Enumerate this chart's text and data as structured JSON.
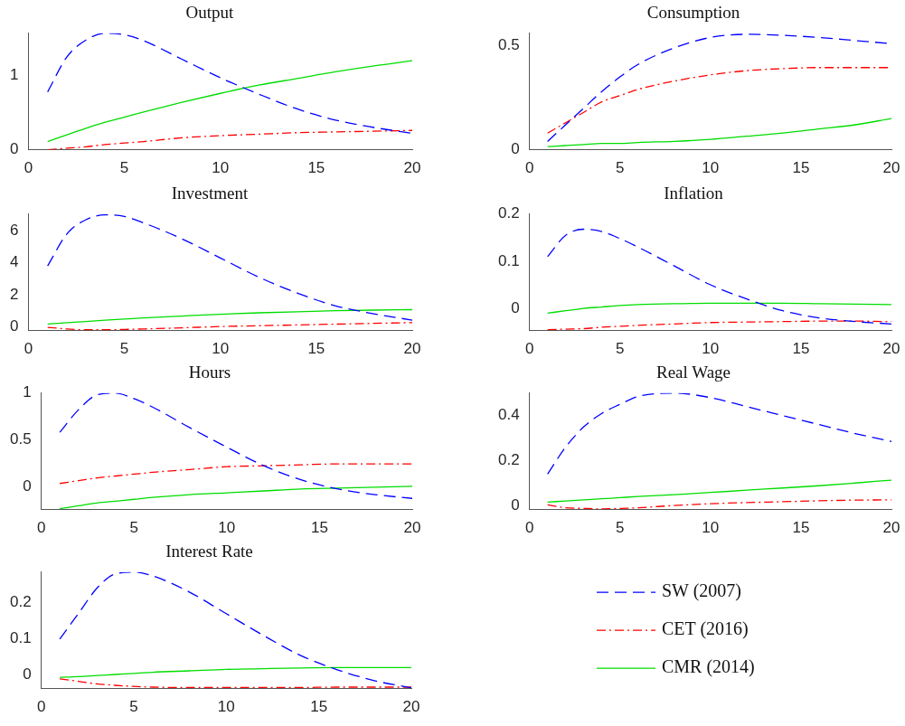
{
  "chart_data": [
    {
      "type": "line",
      "title": "Output",
      "x": [
        1,
        2,
        3,
        4,
        5,
        6,
        8,
        10,
        12,
        14,
        16,
        18,
        20
      ],
      "xlim": [
        0,
        20
      ],
      "xticks": [
        0,
        5,
        10,
        15,
        20
      ],
      "ylim": [
        0,
        1.57
      ],
      "yticks": [
        0,
        1
      ],
      "series": [
        {
          "color": "#0000ff",
          "line_style": "dashed",
          "values": [
            0.78,
            1.25,
            1.48,
            1.57,
            1.55,
            1.47,
            1.22,
            0.97,
            0.75,
            0.55,
            0.4,
            0.3,
            0.22
          ]
        },
        {
          "color": "#ff0000",
          "line_style": "dashdot",
          "values": [
            0.0,
            0.02,
            0.04,
            0.07,
            0.09,
            0.11,
            0.16,
            0.19,
            0.21,
            0.23,
            0.24,
            0.25,
            0.26
          ]
        },
        {
          "color": "#00dd00",
          "line_style": "solid",
          "values": [
            0.11,
            0.2,
            0.29,
            0.37,
            0.44,
            0.51,
            0.64,
            0.76,
            0.87,
            0.96,
            1.05,
            1.13,
            1.2
          ]
        }
      ]
    },
    {
      "type": "line",
      "title": "Consumption",
      "x": [
        1,
        2,
        3,
        4,
        5,
        6,
        8,
        10,
        12,
        14,
        16,
        18,
        20
      ],
      "xlim": [
        0,
        20
      ],
      "xticks": [
        0,
        5,
        10,
        15,
        20
      ],
      "ylim": [
        0,
        0.56
      ],
      "yticks": [
        0,
        0.5
      ],
      "series": [
        {
          "color": "#0000ff",
          "line_style": "dashed",
          "values": [
            0.04,
            0.12,
            0.2,
            0.28,
            0.35,
            0.41,
            0.49,
            0.54,
            0.555,
            0.55,
            0.54,
            0.525,
            0.51
          ]
        },
        {
          "color": "#ff0000",
          "line_style": "dashdot",
          "values": [
            0.08,
            0.13,
            0.18,
            0.23,
            0.26,
            0.29,
            0.33,
            0.36,
            0.38,
            0.39,
            0.395,
            0.395,
            0.395
          ]
        },
        {
          "color": "#00dd00",
          "line_style": "solid",
          "values": [
            0.015,
            0.02,
            0.025,
            0.03,
            0.03,
            0.035,
            0.04,
            0.05,
            0.065,
            0.08,
            0.1,
            0.12,
            0.15
          ]
        }
      ]
    },
    {
      "type": "line",
      "title": "Investment",
      "x": [
        1,
        2,
        3,
        4,
        5,
        6,
        8,
        10,
        12,
        14,
        16,
        18,
        20
      ],
      "xlim": [
        0,
        20
      ],
      "xticks": [
        0,
        5,
        10,
        15,
        20
      ],
      "ylim": [
        -0.25,
        7.05
      ],
      "yticks": [
        0,
        2,
        4,
        6
      ],
      "series": [
        {
          "color": "#0000ff",
          "line_style": "dashed",
          "values": [
            3.8,
            5.8,
            6.7,
            7.0,
            6.9,
            6.5,
            5.5,
            4.3,
            3.1,
            2.1,
            1.3,
            0.8,
            0.4
          ]
        },
        {
          "color": "#ff0000",
          "line_style": "dashdot",
          "values": [
            -0.05,
            -0.15,
            -0.2,
            -0.2,
            -0.18,
            -0.15,
            -0.08,
            0.0,
            0.05,
            0.1,
            0.15,
            0.2,
            0.25
          ]
        },
        {
          "color": "#00dd00",
          "line_style": "solid",
          "values": [
            0.15,
            0.25,
            0.32,
            0.4,
            0.47,
            0.54,
            0.66,
            0.77,
            0.86,
            0.93,
            0.99,
            1.03,
            1.06
          ]
        }
      ]
    },
    {
      "type": "line",
      "title": "Inflation",
      "x": [
        1,
        2,
        3,
        4,
        5,
        6,
        8,
        10,
        12,
        14,
        16,
        18,
        20
      ],
      "xlim": [
        0,
        20
      ],
      "xticks": [
        0,
        5,
        10,
        15,
        20
      ],
      "ylim": [
        -0.047,
        0.2
      ],
      "yticks": [
        0,
        0.1,
        0.2
      ],
      "series": [
        {
          "color": "#0000ff",
          "line_style": "dashed",
          "values": [
            0.11,
            0.155,
            0.168,
            0.163,
            0.148,
            0.13,
            0.09,
            0.05,
            0.02,
            -0.005,
            -0.02,
            -0.028,
            -0.033
          ]
        },
        {
          "color": "#ff0000",
          "line_style": "dashdot",
          "values": [
            -0.045,
            -0.044,
            -0.043,
            -0.04,
            -0.038,
            -0.036,
            -0.033,
            -0.03,
            -0.029,
            -0.028,
            -0.027,
            -0.027,
            -0.028
          ]
        },
        {
          "color": "#00dd00",
          "line_style": "solid",
          "values": [
            -0.01,
            -0.005,
            0.0,
            0.003,
            0.006,
            0.008,
            0.01,
            0.011,
            0.011,
            0.011,
            0.01,
            0.009,
            0.008
          ]
        }
      ]
    },
    {
      "type": "line",
      "title": "Hours",
      "x": [
        1,
        2,
        3,
        4,
        5,
        6,
        8,
        10,
        12,
        14,
        16,
        18,
        20
      ],
      "xlim": [
        0,
        20
      ],
      "xticks": [
        0,
        5,
        10,
        15,
        20
      ],
      "ylim": [
        -0.25,
        1
      ],
      "yticks": [
        0,
        0.5,
        1
      ],
      "series": [
        {
          "color": "#0000ff",
          "line_style": "dashed",
          "values": [
            0.58,
            0.82,
            0.98,
            1.0,
            0.94,
            0.85,
            0.63,
            0.42,
            0.22,
            0.07,
            -0.03,
            -0.09,
            -0.13
          ]
        },
        {
          "color": "#ff0000",
          "line_style": "dashdot",
          "values": [
            0.03,
            0.06,
            0.09,
            0.11,
            0.13,
            0.15,
            0.18,
            0.21,
            0.22,
            0.23,
            0.24,
            0.24,
            0.24
          ]
        },
        {
          "color": "#00dd00",
          "line_style": "solid",
          "values": [
            -0.24,
            -0.21,
            -0.18,
            -0.16,
            -0.14,
            -0.12,
            -0.09,
            -0.07,
            -0.05,
            -0.03,
            -0.02,
            -0.01,
            0.0
          ]
        }
      ]
    },
    {
      "type": "line",
      "title": "Real Wage",
      "x": [
        1,
        2,
        3,
        4,
        5,
        6,
        8,
        10,
        12,
        14,
        16,
        18,
        20
      ],
      "xlim": [
        0,
        20
      ],
      "xticks": [
        0,
        5,
        10,
        15,
        20
      ],
      "ylim": [
        -0.018,
        0.5
      ],
      "yticks": [
        0,
        0.2,
        0.4
      ],
      "series": [
        {
          "color": "#0000ff",
          "line_style": "dashed",
          "values": [
            0.14,
            0.26,
            0.35,
            0.41,
            0.45,
            0.485,
            0.5,
            0.48,
            0.44,
            0.4,
            0.36,
            0.32,
            0.285
          ]
        },
        {
          "color": "#ff0000",
          "line_style": "dashdot",
          "values": [
            0.003,
            -0.01,
            -0.013,
            -0.015,
            -0.013,
            -0.01,
            0.0,
            0.008,
            0.013,
            0.017,
            0.021,
            0.024,
            0.025
          ]
        },
        {
          "color": "#00dd00",
          "line_style": "solid",
          "values": [
            0.015,
            0.02,
            0.025,
            0.03,
            0.035,
            0.04,
            0.048,
            0.058,
            0.068,
            0.078,
            0.088,
            0.1,
            0.113
          ]
        }
      ]
    },
    {
      "type": "line",
      "title": "Interest Rate",
      "x": [
        1,
        2,
        3,
        4,
        5,
        6,
        8,
        10,
        12,
        14,
        16,
        18,
        20
      ],
      "xlim": [
        0,
        20
      ],
      "xticks": [
        0,
        5,
        10,
        15,
        20
      ],
      "ylim": [
        -0.037,
        0.285
      ],
      "yticks": [
        0,
        0.1,
        0.2
      ],
      "legend": "right",
      "series": [
        {
          "name": "SW (2007)",
          "color": "#0000ff",
          "line_style": "dashed",
          "values": [
            0.1,
            0.17,
            0.24,
            0.28,
            0.285,
            0.275,
            0.23,
            0.17,
            0.11,
            0.055,
            0.015,
            -0.015,
            -0.035
          ]
        },
        {
          "name": "CET (2016)",
          "color": "#ff0000",
          "line_style": "dashdot",
          "values": [
            -0.01,
            -0.017,
            -0.024,
            -0.028,
            -0.031,
            -0.033,
            -0.034,
            -0.034,
            -0.034,
            -0.034,
            -0.033,
            -0.033,
            -0.033
          ]
        },
        {
          "name": "CMR (2014)",
          "color": "#00dd00",
          "line_style": "solid",
          "values": [
            -0.006,
            -0.004,
            -0.001,
            0.002,
            0.005,
            0.008,
            0.012,
            0.016,
            0.018,
            0.02,
            0.021,
            0.021,
            0.021
          ]
        }
      ]
    }
  ]
}
